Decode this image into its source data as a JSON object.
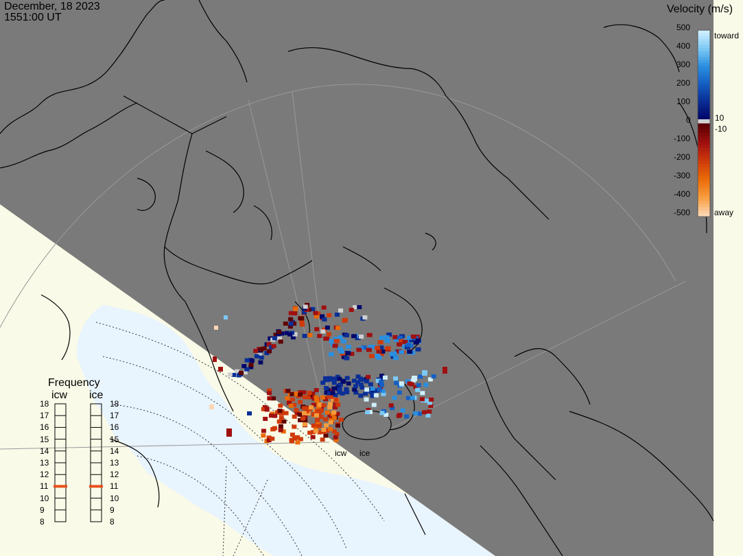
{
  "header": {
    "date": "December, 18 2023",
    "time": "1551:00 UT"
  },
  "colorbar": {
    "title": "Velocity (m/s)",
    "positive_ticks": [
      "500",
      "400",
      "300",
      "200",
      "100"
    ],
    "zero_tick": "0",
    "negative_ticks": [
      "-100",
      "-200",
      "-300",
      "-400",
      "-500"
    ],
    "small_pos": "10",
    "small_neg": "-10",
    "toward_label": "toward",
    "away_label": "away",
    "toward_colors": [
      "#cfefff",
      "#7cc9f5",
      "#2b8fe0",
      "#1560c4",
      "#0a2f96",
      "#02086a"
    ],
    "away_colors": [
      "#5e0000",
      "#a01010",
      "#cf3a0a",
      "#ea6a06",
      "#f79c3c",
      "#fcd6b3"
    ]
  },
  "sites": {
    "icw": "icw",
    "ice": "ice"
  },
  "frequency": {
    "title": "Frequency",
    "col_left": "icw",
    "col_right": "ice",
    "ticks": [
      "18",
      "17",
      "16",
      "15",
      "14",
      "13",
      "12",
      "11",
      "10",
      "9",
      "8"
    ],
    "icw_value": 11,
    "ice_value": 11,
    "marker_color": "#e8501c"
  },
  "map": {
    "night_color": "#7a7a7a",
    "day_land_color": "#fafae8",
    "day_ocean_color": "#e8f4fe",
    "coast_color": "#000000",
    "grid_color": "#999999"
  }
}
